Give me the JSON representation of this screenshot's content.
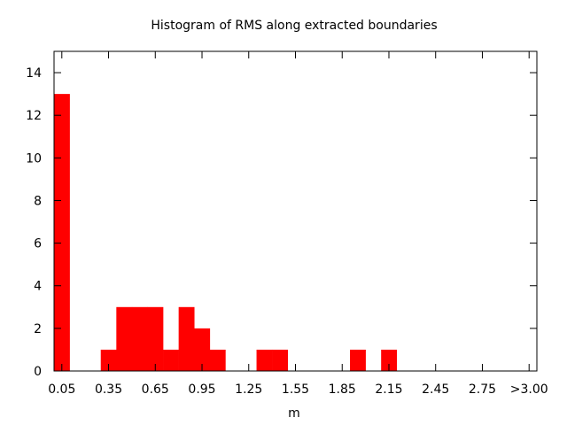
{
  "chart_data": {
    "type": "bar",
    "title": "Histogram of RMS along extracted boundaries",
    "xlabel": "m",
    "ylabel": "",
    "bin_width": 0.1,
    "xlim": [
      0.0,
      3.1
    ],
    "ylim": [
      0,
      15
    ],
    "x_ticks": [
      {
        "value": 0.05,
        "label": "0.05"
      },
      {
        "value": 0.35,
        "label": "0.35"
      },
      {
        "value": 0.65,
        "label": "0.65"
      },
      {
        "value": 0.95,
        "label": "0.95"
      },
      {
        "value": 1.25,
        "label": "1.25"
      },
      {
        "value": 1.55,
        "label": "1.55"
      },
      {
        "value": 1.85,
        "label": "1.85"
      },
      {
        "value": 2.15,
        "label": "2.15"
      },
      {
        "value": 2.45,
        "label": "2.45"
      },
      {
        "value": 2.75,
        "label": "2.75"
      },
      {
        "value": 3.05,
        "label": ">3.00"
      }
    ],
    "y_ticks": [
      {
        "value": 0,
        "label": "0"
      },
      {
        "value": 2,
        "label": "2"
      },
      {
        "value": 4,
        "label": "4"
      },
      {
        "value": 6,
        "label": "6"
      },
      {
        "value": 8,
        "label": "8"
      },
      {
        "value": 10,
        "label": "10"
      },
      {
        "value": 12,
        "label": "12"
      },
      {
        "value": 14,
        "label": "14"
      }
    ],
    "bins": [
      0.05,
      0.35,
      0.45,
      0.55,
      0.65,
      0.75,
      0.85,
      0.95,
      1.05,
      1.35,
      1.45,
      1.95,
      2.15
    ],
    "values": [
      13,
      1,
      3,
      3,
      3,
      1,
      3,
      2,
      1,
      1,
      1,
      1,
      1
    ],
    "bar_color": "#ff0000",
    "grid": false
  }
}
